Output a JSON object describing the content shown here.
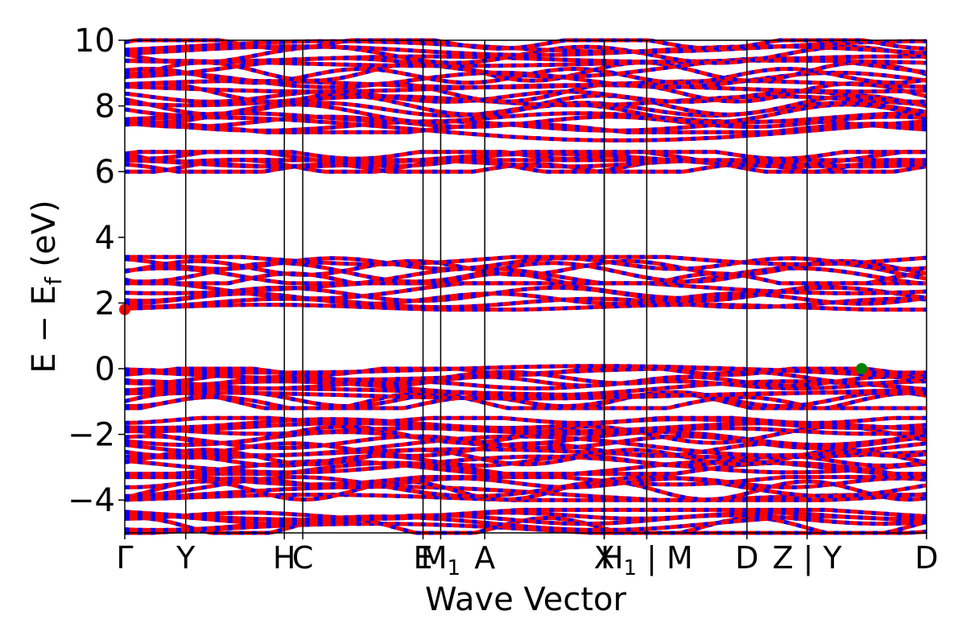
{
  "chart_data": {
    "type": "line",
    "title": "",
    "xlabel": "Wave Vector",
    "ylabel": "E − E_f (eV)",
    "ylabel_parts": {
      "base": "E  −  E",
      "sub": "f",
      "unit": " (eV)"
    },
    "ylim": [
      -5,
      10
    ],
    "yticks": [
      -4,
      -2,
      0,
      2,
      4,
      6,
      8,
      10
    ],
    "ytick_labels": [
      "−4",
      "−2",
      "0",
      "2",
      "4",
      "6",
      "8",
      "10"
    ],
    "xlim": [
      0,
      1
    ],
    "kpath_ticks": [
      {
        "x": 0.0,
        "label": "Γ"
      },
      {
        "x": 0.076,
        "label": "Y"
      },
      {
        "x": 0.199,
        "label": "H"
      },
      {
        "x": 0.222,
        "label": "C"
      },
      {
        "x": 0.372,
        "label": "E"
      },
      {
        "x": 0.394,
        "label": "M1",
        "base": "M",
        "sub": "1"
      },
      {
        "x": 0.449,
        "label": "A"
      },
      {
        "x": 0.598,
        "label": "X"
      },
      {
        "x": 0.598,
        "label": ""
      },
      {
        "x": 0.651,
        "label": "H1 | M",
        "base": "H",
        "sub": "1",
        "suffix": " | M"
      },
      {
        "x": 0.776,
        "label": "D"
      },
      {
        "x": 0.851,
        "label": "Z | Y"
      },
      {
        "x": 1.0,
        "label": "D"
      }
    ],
    "segment_breaks": [
      0.651,
      0.851
    ],
    "series": [
      {
        "color": "#ff0000",
        "values": []
      },
      {
        "color": "#0000ff",
        "values": []
      }
    ],
    "bands_description": {
      "conduction_groups_eV": [
        [
          1.8,
          2.6
        ],
        [
          2.6,
          3.4
        ],
        [
          6.0,
          6.6
        ],
        [
          7.2,
          10
        ]
      ],
      "valence_groups_eV": [
        [
          -5,
          -4.3
        ],
        [
          -4.0,
          -3.3
        ],
        [
          -3.2,
          -1.5
        ],
        [
          -1.2,
          0
        ]
      ]
    },
    "markers": [
      {
        "name": "CBM",
        "x": 0.0,
        "y": 1.8,
        "color": "#ff0000"
      },
      {
        "name": "VBM",
        "x": 0.919,
        "y": 0.0,
        "color": "#008000"
      }
    ],
    "colors": {
      "spin_up": "#ff0000",
      "spin_down": "#0000ff",
      "vbm": "#008000",
      "axis": "#000000"
    },
    "grid": false
  }
}
